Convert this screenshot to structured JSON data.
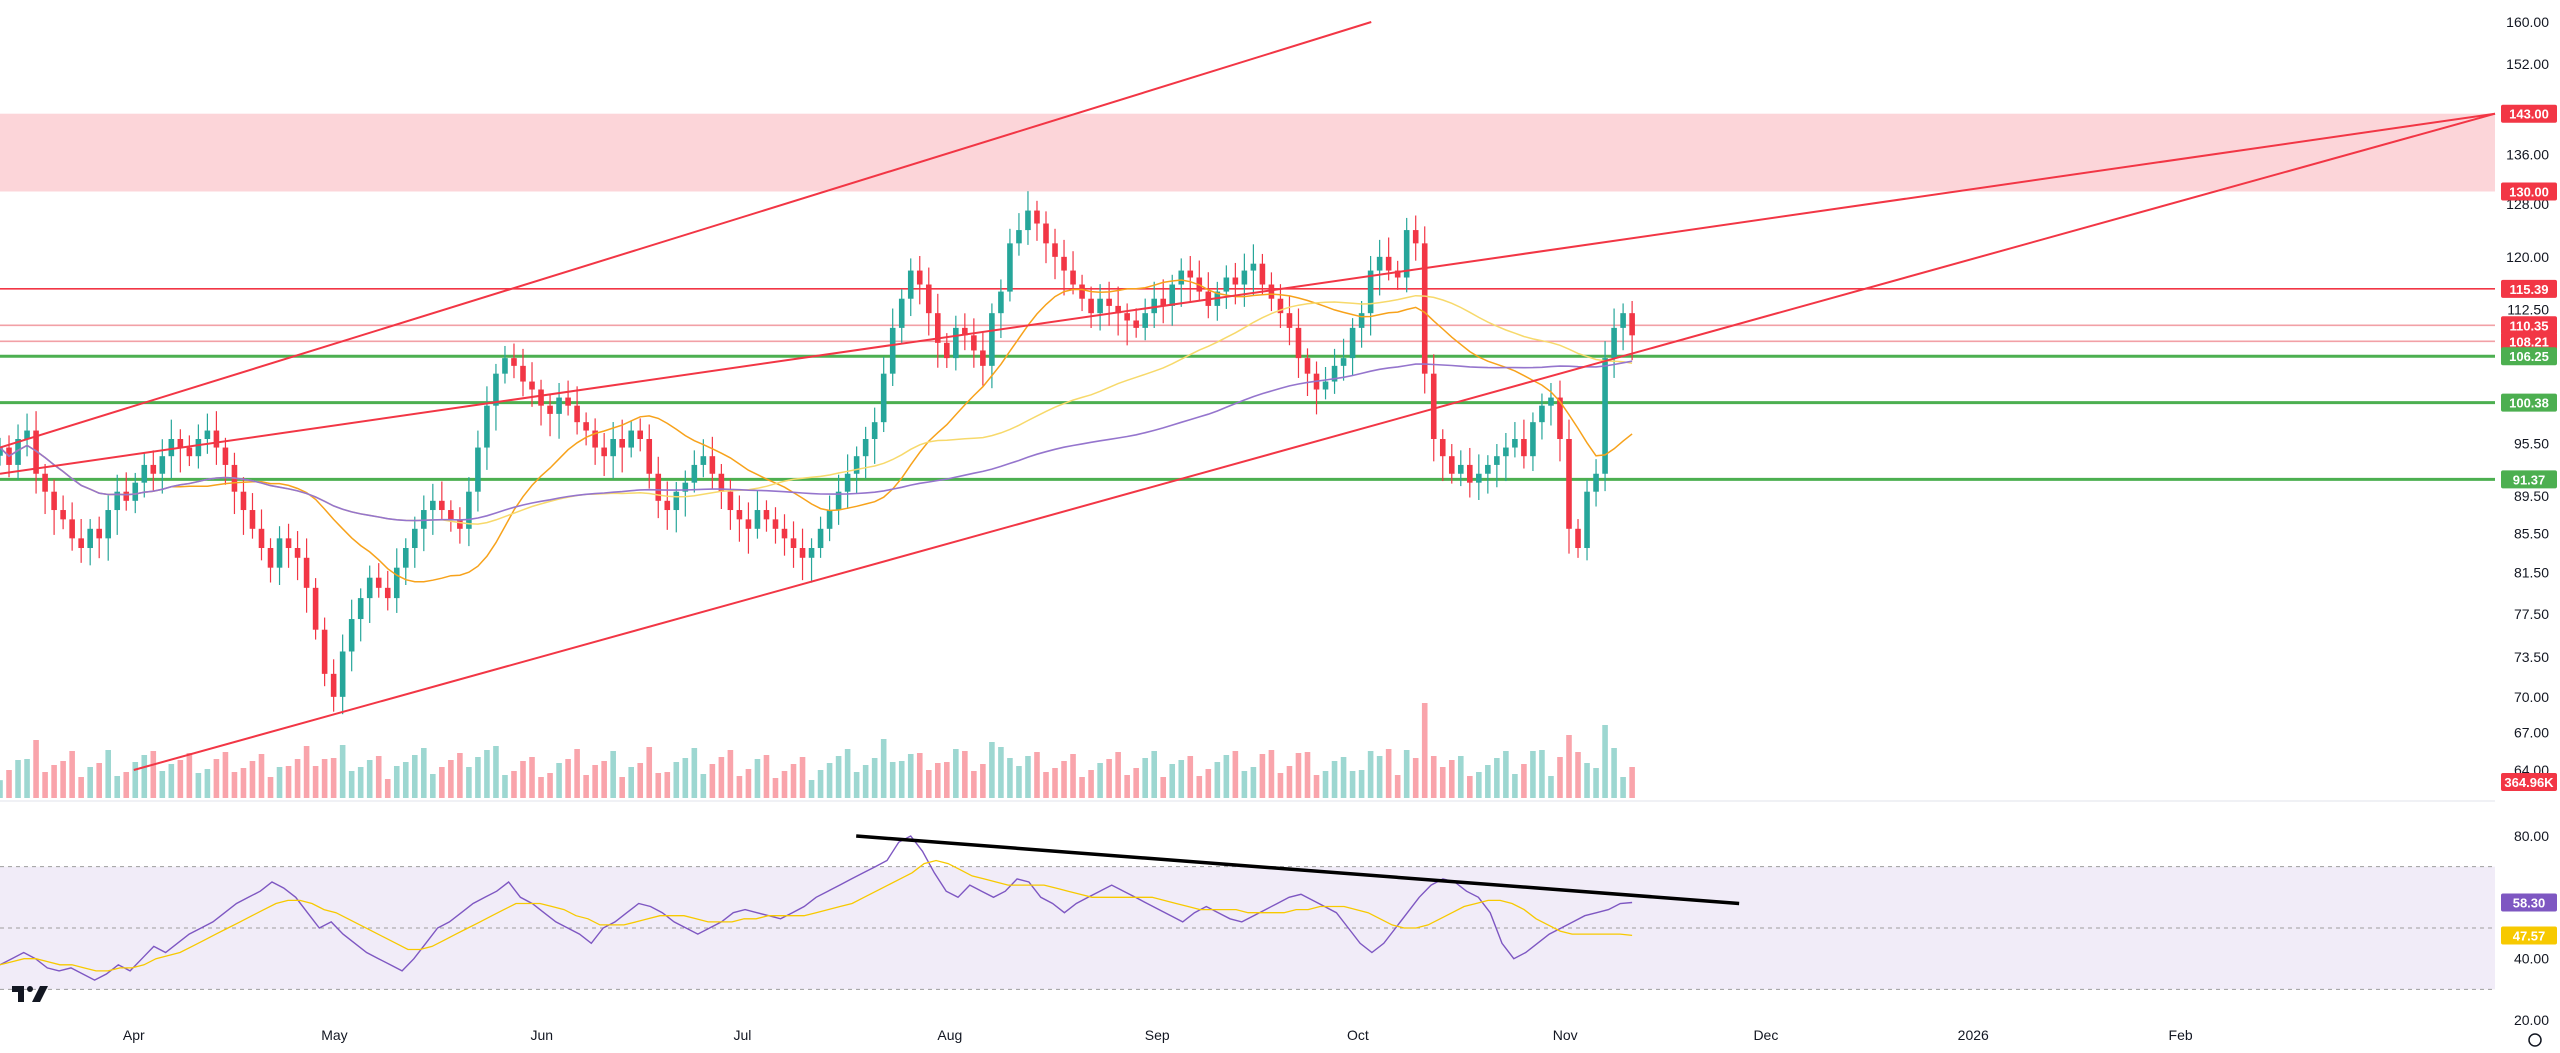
{
  "chart_data": {
    "type": "candlestick",
    "price_axis": {
      "ticks": [
        "160.00",
        "152.00",
        "143.00",
        "136.00",
        "128.00",
        "120.00",
        "112.50",
        "106.25",
        "100.38",
        "95.50",
        "89.50",
        "85.50",
        "81.50",
        "77.50",
        "73.50",
        "70.00",
        "67.00",
        "64.00"
      ],
      "scale": "log"
    },
    "rsi_axis": {
      "ticks": [
        "80.00",
        "40.00",
        "20.00"
      ],
      "band": [
        30,
        70
      ]
    },
    "time_axis": {
      "ticks": [
        "Apr",
        "May",
        "Jun",
        "Jul",
        "Aug",
        "Sep",
        "Oct",
        "Nov",
        "Dec",
        "2026",
        "Feb"
      ]
    },
    "price_badges": [
      {
        "label": "143.00",
        "color": "#f23645"
      },
      {
        "label": "130.00",
        "color": "#f23645"
      },
      {
        "label": "115.39",
        "color": "#f23645"
      },
      {
        "label": "110.35",
        "color": "#f23645"
      },
      {
        "label": "108.21",
        "color": "#f23645"
      },
      {
        "label": "106.25",
        "color": "#4caf50"
      },
      {
        "label": "100.38",
        "color": "#4caf50"
      },
      {
        "label": "91.37",
        "color": "#4caf50"
      }
    ],
    "volume_badge": {
      "label": "364.96K",
      "color": "#f23645"
    },
    "rsi_badges": [
      {
        "label": "58.30",
        "color": "#7e57c2"
      },
      {
        "label": "47.57",
        "color": "#f7c900"
      }
    ],
    "resistance_zone": [
      130.0,
      143.0
    ],
    "horizontal_levels": [
      {
        "value": 115.39,
        "color": "#f23645"
      },
      {
        "value": 110.35,
        "color": "#f2a0a6"
      },
      {
        "value": 108.21,
        "color": "#f2a0a6"
      },
      {
        "value": 106.25,
        "color": "#4caf50"
      },
      {
        "value": 100.38,
        "color": "#4caf50"
      },
      {
        "value": 91.37,
        "color": "#4caf50"
      }
    ],
    "colors": {
      "up": "#26a69a",
      "down": "#f23645",
      "ma_fast": "#f7a21b",
      "ma_mid": "#f7d96b",
      "ma_slow": "#9575cd",
      "rsi": "#7e57c2",
      "rsi_ma": "#f7c900"
    },
    "series_close": [
      95,
      93,
      96,
      97,
      92,
      90,
      88,
      87,
      85,
      84,
      86,
      85,
      88,
      90,
      89,
      91,
      93,
      92,
      94,
      96,
      95,
      94,
      96,
      97,
      95,
      93,
      90,
      88,
      86,
      84,
      82,
      85,
      84,
      83,
      80,
      76,
      72,
      70,
      74,
      77,
      79,
      81,
      80,
      79,
      82,
      84,
      86,
      88,
      89,
      88,
      87,
      86,
      90,
      95,
      100,
      104,
      106,
      105,
      103,
      102,
      100,
      99,
      101,
      100,
      98,
      97,
      95,
      94,
      96,
      95,
      97,
      96,
      92,
      89,
      88,
      90,
      91,
      93,
      94,
      92,
      90,
      88,
      87,
      86,
      88,
      87,
      86,
      85,
      84,
      83,
      84,
      86,
      88,
      90,
      92,
      94,
      96,
      98,
      104,
      110,
      114,
      118,
      116,
      112,
      108,
      106,
      110,
      109,
      107,
      105,
      112,
      115,
      122,
      124,
      127,
      125,
      122,
      120,
      118,
      116,
      114,
      112,
      114,
      113,
      112,
      111,
      110,
      112,
      114,
      113,
      116,
      118,
      117,
      115,
      113,
      115,
      117,
      116,
      118,
      119,
      116,
      114,
      112,
      110,
      106,
      104,
      102,
      103,
      105,
      106,
      110,
      112,
      118,
      120,
      118,
      117,
      124,
      122,
      104,
      96,
      94,
      92,
      93,
      91,
      92,
      93,
      94,
      95,
      96,
      94,
      98,
      100,
      101,
      96,
      86,
      84,
      90,
      92,
      106,
      110,
      112,
      109
    ],
    "rsi_values": [
      38,
      40,
      42,
      40,
      37,
      36,
      37,
      35,
      33,
      35,
      38,
      36,
      40,
      44,
      42,
      45,
      48,
      50,
      52,
      55,
      58,
      60,
      62,
      65,
      63,
      60,
      55,
      50,
      52,
      48,
      45,
      42,
      40,
      38,
      36,
      40,
      45,
      50,
      52,
      55,
      58,
      60,
      62,
      65,
      60,
      58,
      55,
      52,
      50,
      48,
      45,
      50,
      52,
      55,
      58,
      57,
      55,
      52,
      50,
      48,
      50,
      52,
      55,
      56,
      55,
      54,
      53,
      55,
      57,
      60,
      62,
      64,
      66,
      68,
      70,
      72,
      78,
      80,
      75,
      68,
      62,
      60,
      64,
      62,
      60,
      62,
      66,
      65,
      60,
      58,
      55,
      58,
      60,
      62,
      64,
      62,
      60,
      58,
      56,
      54,
      52,
      55,
      57,
      55,
      53,
      52,
      54,
      56,
      58,
      60,
      61,
      59,
      57,
      55,
      50,
      45,
      42,
      45,
      50,
      55,
      60,
      64,
      66,
      65,
      62,
      60,
      55,
      45,
      40,
      42,
      45,
      48,
      50,
      52,
      54,
      55,
      56,
      58,
      58.3
    ],
    "rsi_ma_values": [
      38,
      39,
      40,
      40,
      39,
      38,
      38,
      37,
      36,
      36,
      37,
      37,
      38,
      40,
      41,
      42,
      44,
      46,
      48,
      50,
      52,
      54,
      56,
      58,
      59,
      59,
      58,
      56,
      55,
      53,
      51,
      49,
      47,
      45,
      43,
      43,
      44,
      46,
      48,
      50,
      52,
      54,
      56,
      58,
      58,
      58,
      57,
      56,
      54,
      53,
      51,
      51,
      51,
      52,
      53,
      54,
      54,
      54,
      53,
      52,
      52,
      52,
      53,
      53,
      54,
      54,
      54,
      54,
      55,
      56,
      57,
      58,
      60,
      62,
      64,
      66,
      68,
      71,
      72,
      71,
      69,
      67,
      66,
      65,
      64,
      64,
      64,
      64,
      63,
      62,
      61,
      60,
      60,
      60,
      60,
      60,
      60,
      59,
      58,
      57,
      56,
      56,
      56,
      56,
      55,
      55,
      55,
      55,
      56,
      56,
      57,
      57,
      57,
      56,
      55,
      53,
      51,
      50,
      50,
      51,
      53,
      55,
      57,
      58,
      59,
      59,
      58,
      56,
      53,
      51,
      49,
      48,
      48,
      48,
      48,
      48,
      47.6
    ]
  }
}
